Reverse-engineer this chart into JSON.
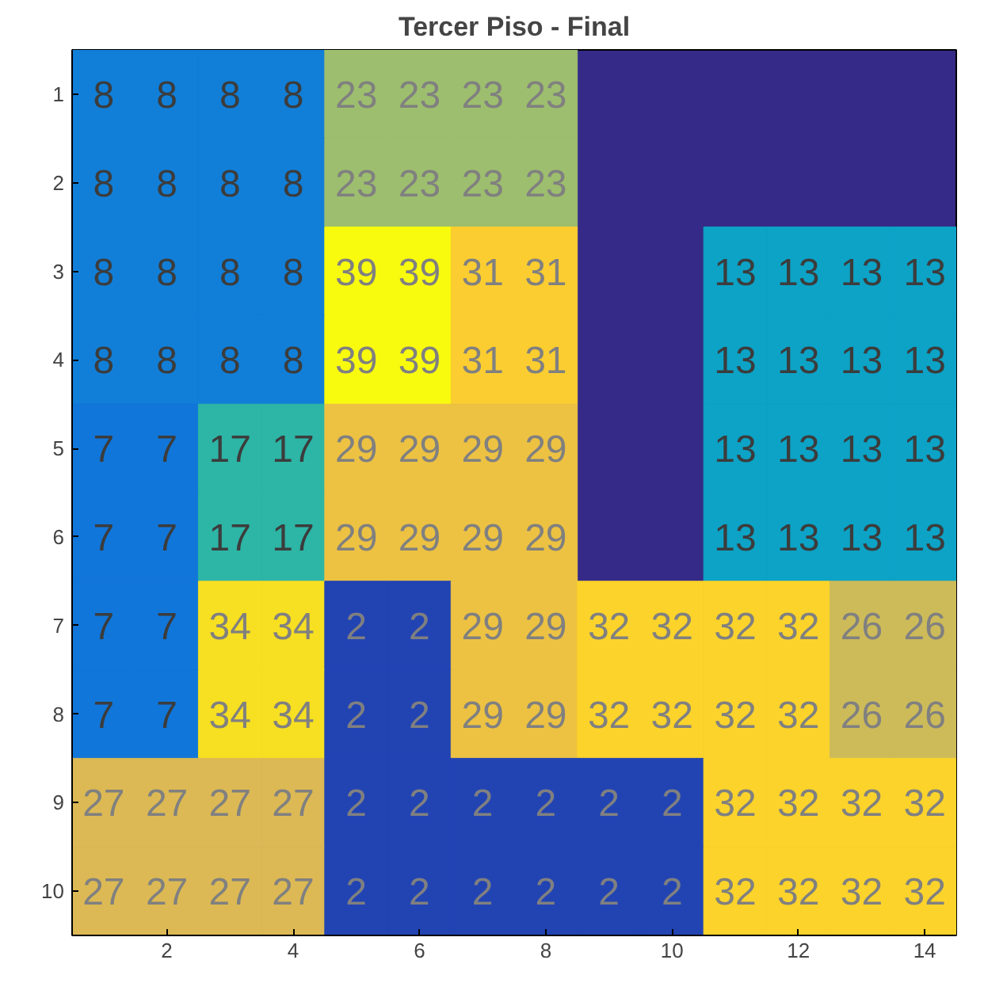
{
  "chart_data": {
    "type": "heatmap",
    "title": "Tercer Piso - Final",
    "categories": [
      null,
      "2",
      null,
      "4",
      null,
      "6",
      null,
      "8",
      null,
      "10",
      null,
      "12",
      null,
      "14"
    ],
    "y_categories": [
      "1",
      "2",
      "3",
      "4",
      "5",
      "6",
      "7",
      "8",
      "9",
      "10"
    ],
    "cells": [
      [
        8,
        8,
        8,
        8,
        23,
        23,
        23,
        23,
        null,
        null,
        null,
        null,
        null,
        null
      ],
      [
        8,
        8,
        8,
        8,
        23,
        23,
        23,
        23,
        null,
        null,
        null,
        null,
        null,
        null
      ],
      [
        8,
        8,
        8,
        8,
        39,
        39,
        31,
        31,
        null,
        null,
        13,
        13,
        13,
        13
      ],
      [
        8,
        8,
        8,
        8,
        39,
        39,
        31,
        31,
        null,
        null,
        13,
        13,
        13,
        13
      ],
      [
        7,
        7,
        17,
        17,
        29,
        29,
        29,
        29,
        null,
        null,
        13,
        13,
        13,
        13
      ],
      [
        7,
        7,
        17,
        17,
        29,
        29,
        29,
        29,
        null,
        null,
        13,
        13,
        13,
        13
      ],
      [
        7,
        7,
        34,
        34,
        2,
        2,
        29,
        29,
        32,
        32,
        32,
        32,
        26,
        26
      ],
      [
        7,
        7,
        34,
        34,
        2,
        2,
        29,
        29,
        32,
        32,
        32,
        32,
        26,
        26
      ],
      [
        27,
        27,
        27,
        27,
        2,
        2,
        2,
        2,
        2,
        2,
        32,
        32,
        32,
        32
      ],
      [
        27,
        27,
        27,
        27,
        2,
        2,
        2,
        2,
        2,
        2,
        32,
        32,
        32,
        32
      ]
    ],
    "data_labels": true,
    "grid": false
  }
}
